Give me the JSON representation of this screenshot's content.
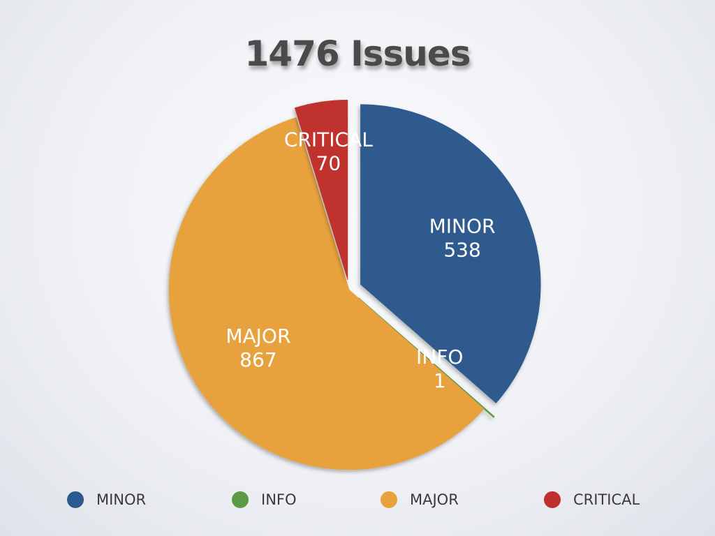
{
  "chart_data": {
    "type": "pie",
    "title": "1476 Issues",
    "slices": [
      {
        "label": "MINOR",
        "value": 538,
        "color": "#2d5a8e"
      },
      {
        "label": "INFO",
        "value": 1,
        "color": "#5a9a44"
      },
      {
        "label": "MAJOR",
        "value": 867,
        "color": "#e8a23c"
      },
      {
        "label": "CRITICAL",
        "value": 70,
        "color": "#c0302f"
      }
    ],
    "legend": {
      "position": "bottom",
      "items": [
        {
          "label": "MINOR",
          "color": "#2d5a8e"
        },
        {
          "label": "INFO",
          "color": "#5a9a44"
        },
        {
          "label": "MAJOR",
          "color": "#e8a23c"
        },
        {
          "label": "CRITICAL",
          "color": "#c0302f"
        }
      ]
    }
  }
}
